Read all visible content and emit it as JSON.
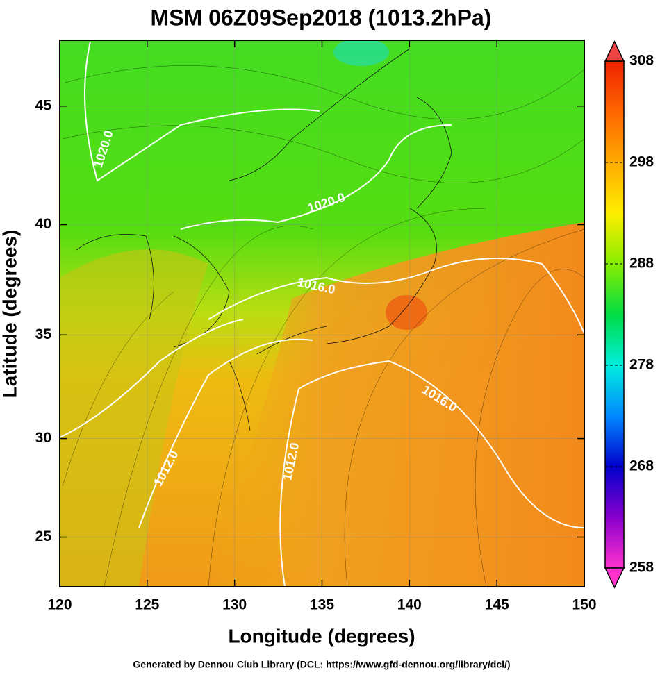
{
  "title": "MSM 06Z09Sep2018 (1013.2hPa)",
  "x_label": "Longitude (degrees)",
  "y_label": "Latitude  (degrees)",
  "projection": "mercator",
  "xlim": [
    120,
    150
  ],
  "xticks": [
    120,
    125,
    130,
    135,
    140,
    145,
    150
  ],
  "ylim": [
    22.4,
    47.6
  ],
  "yticks": [
    25,
    30,
    35,
    40,
    45
  ],
  "grid": true,
  "colorbar": {
    "lim": [
      258,
      308
    ],
    "ticks": [
      258,
      268,
      278,
      288,
      298,
      308
    ],
    "colors": [
      "#ff33cc",
      "#8800cc",
      "#0000cc",
      "#0088ff",
      "#00eedd",
      "#00dd44",
      "#88ee00",
      "#ffee00",
      "#ffaa00",
      "#ff6600",
      "#ee2200"
    ]
  },
  "contour_labels": [
    "1020.0",
    "1020.0",
    "1016.0",
    "1016.0",
    "1012.0",
    "1012.0"
  ],
  "footer": "Generated by Dennou Club Library (DCL: https://www.gfd-dennou.org/library/dcl/)"
}
